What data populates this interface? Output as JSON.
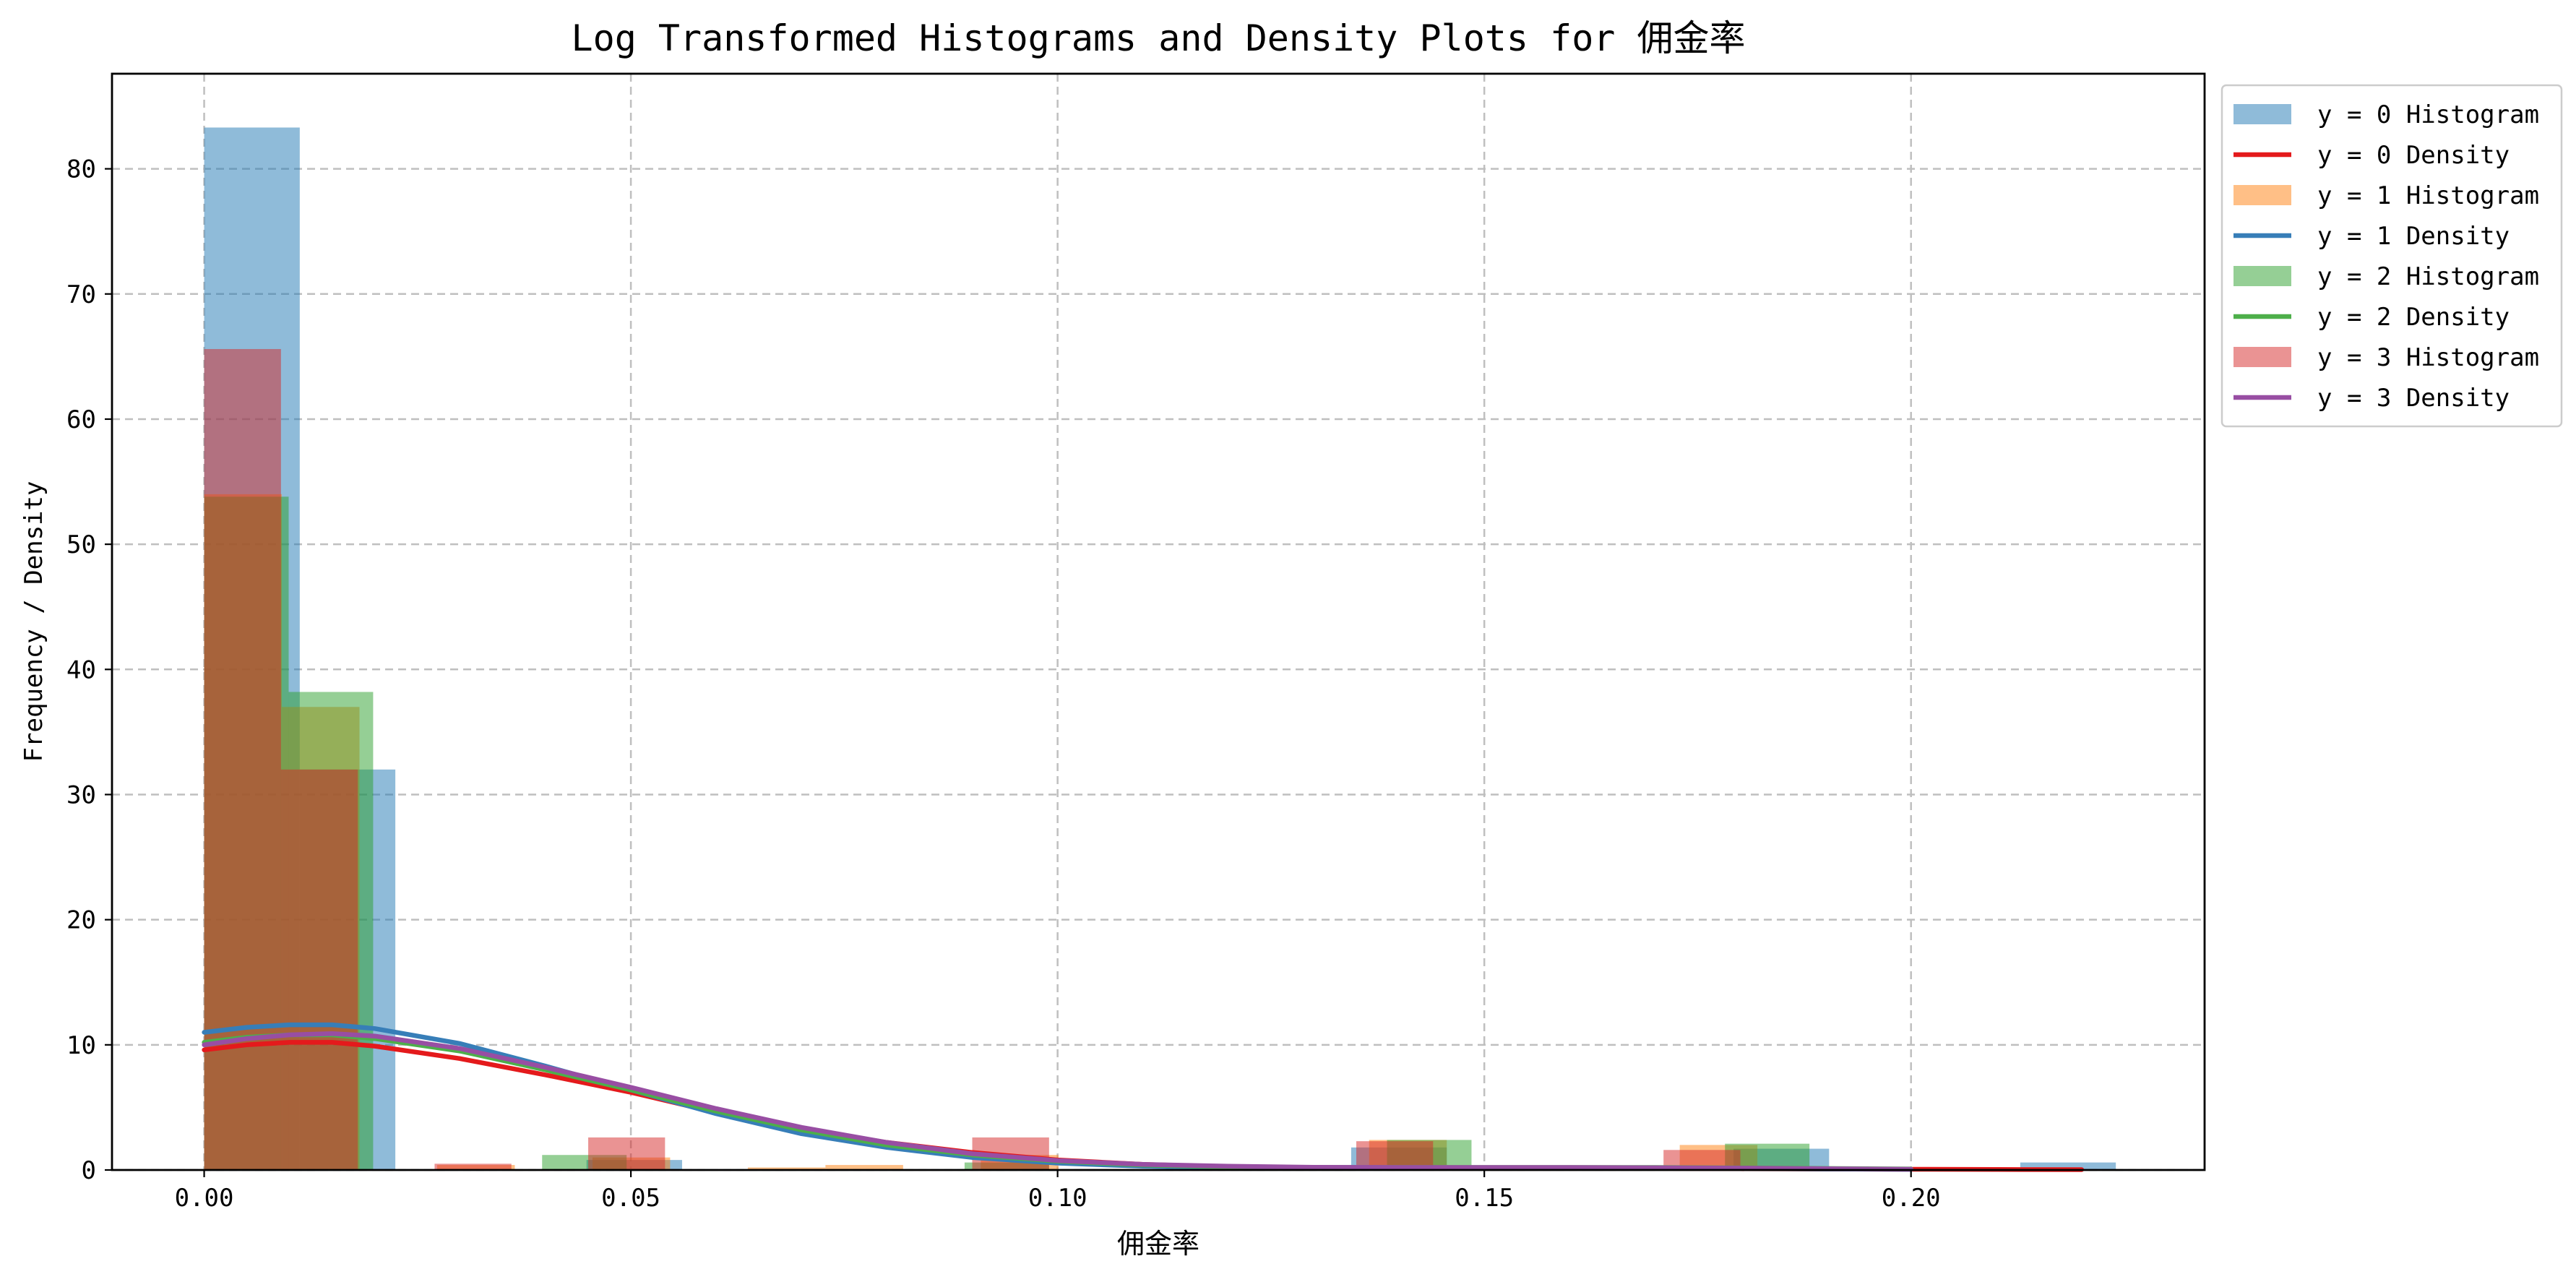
{
  "chart_data": {
    "type": "bar",
    "title": "Log Transformed Histograms and Density Plots for 佣金率",
    "xlabel": "佣金率",
    "ylabel": "Frequency / Density",
    "xlim": [
      -0.0108,
      0.2344
    ],
    "ylim": [
      0,
      87.6
    ],
    "xticks": [
      "0.00",
      "0.05",
      "0.10",
      "0.15",
      "0.20"
    ],
    "yticks": [
      "0",
      "10",
      "20",
      "30",
      "40",
      "50",
      "60",
      "70",
      "80"
    ],
    "grid": true,
    "legend_position": "outside-top-right",
    "series": [
      {
        "name": "y = 0 Histogram",
        "kind": "histogram",
        "color": "#1f77b4",
        "alpha": 0.5,
        "bins": [
          {
            "x0": 0.0,
            "x1": 0.0112,
            "value": 83.3
          },
          {
            "x0": 0.0112,
            "x1": 0.0224,
            "value": 32.0
          },
          {
            "x0": 0.0448,
            "x1": 0.056,
            "value": 0.8
          },
          {
            "x0": 0.1344,
            "x1": 0.1456,
            "value": 1.8
          },
          {
            "x0": 0.1792,
            "x1": 0.1904,
            "value": 1.7
          },
          {
            "x0": 0.2128,
            "x1": 0.224,
            "value": 0.6
          }
        ]
      },
      {
        "name": "y = 0 Density",
        "kind": "density",
        "color": "#e41a1c",
        "x": [
          0.0,
          0.005,
          0.01,
          0.015,
          0.02,
          0.03,
          0.04,
          0.05,
          0.06,
          0.07,
          0.08,
          0.09,
          0.1,
          0.11,
          0.12,
          0.13,
          0.14,
          0.15,
          0.16,
          0.17,
          0.18,
          0.19,
          0.2,
          0.21,
          0.22
        ],
        "y": [
          9.6,
          10.0,
          10.2,
          10.2,
          9.9,
          8.9,
          7.6,
          6.2,
          4.6,
          3.3,
          2.2,
          1.4,
          0.8,
          0.45,
          0.25,
          0.15,
          0.12,
          0.12,
          0.12,
          0.12,
          0.1,
          0.08,
          0.06,
          0.04,
          0.03
        ]
      },
      {
        "name": "y = 1 Histogram",
        "kind": "histogram",
        "color": "#ff7f0e",
        "alpha": 0.5,
        "bins": [
          {
            "x0": 0.0,
            "x1": 0.0091,
            "value": 54.0
          },
          {
            "x0": 0.0091,
            "x1": 0.0182,
            "value": 37.0
          },
          {
            "x0": 0.0273,
            "x1": 0.0364,
            "value": 0.4
          },
          {
            "x0": 0.0455,
            "x1": 0.0546,
            "value": 1.0
          },
          {
            "x0": 0.0637,
            "x1": 0.0728,
            "value": 0.2
          },
          {
            "x0": 0.0728,
            "x1": 0.0819,
            "value": 0.4
          },
          {
            "x0": 0.091,
            "x1": 0.1001,
            "value": 1.2
          },
          {
            "x0": 0.1365,
            "x1": 0.1456,
            "value": 2.4
          },
          {
            "x0": 0.1729,
            "x1": 0.182,
            "value": 2.0
          },
          {
            "x0": 0.2002,
            "x1": 0.2093,
            "value": 0.1
          }
        ]
      },
      {
        "name": "y = 1 Density",
        "kind": "density",
        "color": "#377eb8",
        "x": [
          0.0,
          0.005,
          0.01,
          0.015,
          0.02,
          0.03,
          0.04,
          0.05,
          0.06,
          0.07,
          0.08,
          0.09,
          0.1,
          0.11,
          0.12,
          0.13,
          0.14,
          0.15,
          0.16,
          0.17,
          0.18,
          0.19,
          0.2
        ],
        "y": [
          11.0,
          11.4,
          11.6,
          11.6,
          11.3,
          10.1,
          8.3,
          6.4,
          4.5,
          2.9,
          1.8,
          1.0,
          0.55,
          0.3,
          0.2,
          0.15,
          0.15,
          0.15,
          0.15,
          0.14,
          0.12,
          0.08,
          0.05
        ]
      },
      {
        "name": "y = 2 Histogram",
        "kind": "histogram",
        "color": "#2ca02c",
        "alpha": 0.5,
        "bins": [
          {
            "x0": 0.0,
            "x1": 0.0099,
            "value": 53.8
          },
          {
            "x0": 0.0099,
            "x1": 0.0198,
            "value": 38.2
          },
          {
            "x0": 0.0396,
            "x1": 0.0495,
            "value": 1.2
          },
          {
            "x0": 0.0891,
            "x1": 0.099,
            "value": 0.6
          },
          {
            "x0": 0.1386,
            "x1": 0.1485,
            "value": 2.4
          },
          {
            "x0": 0.1782,
            "x1": 0.1881,
            "value": 2.1
          }
        ]
      },
      {
        "name": "y = 2 Density",
        "kind": "density",
        "color": "#4daf4a",
        "x": [
          0.0,
          0.005,
          0.01,
          0.015,
          0.02,
          0.03,
          0.04,
          0.05,
          0.06,
          0.07,
          0.08,
          0.09,
          0.1,
          0.11,
          0.12,
          0.13,
          0.14,
          0.15,
          0.16,
          0.17,
          0.18,
          0.19,
          0.2
        ],
        "y": [
          10.2,
          10.6,
          10.8,
          10.8,
          10.5,
          9.5,
          8.0,
          6.4,
          4.7,
          3.2,
          2.0,
          1.2,
          0.7,
          0.4,
          0.25,
          0.2,
          0.2,
          0.2,
          0.2,
          0.2,
          0.17,
          0.12,
          0.08
        ]
      },
      {
        "name": "y = 3 Histogram",
        "kind": "histogram",
        "color": "#d62728",
        "alpha": 0.5,
        "bins": [
          {
            "x0": 0.0,
            "x1": 0.009,
            "value": 65.6
          },
          {
            "x0": 0.009,
            "x1": 0.018,
            "value": 32.0
          },
          {
            "x0": 0.027,
            "x1": 0.036,
            "value": 0.5
          },
          {
            "x0": 0.045,
            "x1": 0.054,
            "value": 2.6
          },
          {
            "x0": 0.09,
            "x1": 0.099,
            "value": 2.6
          },
          {
            "x0": 0.135,
            "x1": 0.144,
            "value": 2.3
          },
          {
            "x0": 0.171,
            "x1": 0.18,
            "value": 1.6
          }
        ]
      },
      {
        "name": "y = 3 Density",
        "kind": "density",
        "color": "#984ea3",
        "x": [
          0.0,
          0.005,
          0.01,
          0.015,
          0.02,
          0.03,
          0.04,
          0.05,
          0.06,
          0.07,
          0.08,
          0.09,
          0.1,
          0.11,
          0.12,
          0.13,
          0.14,
          0.15,
          0.16,
          0.17,
          0.18,
          0.19,
          0.2
        ],
        "y": [
          10.0,
          10.5,
          10.8,
          10.9,
          10.7,
          9.7,
          8.2,
          6.6,
          4.9,
          3.4,
          2.2,
          1.3,
          0.75,
          0.45,
          0.3,
          0.22,
          0.2,
          0.2,
          0.2,
          0.18,
          0.15,
          0.1,
          0.06
        ]
      }
    ]
  }
}
